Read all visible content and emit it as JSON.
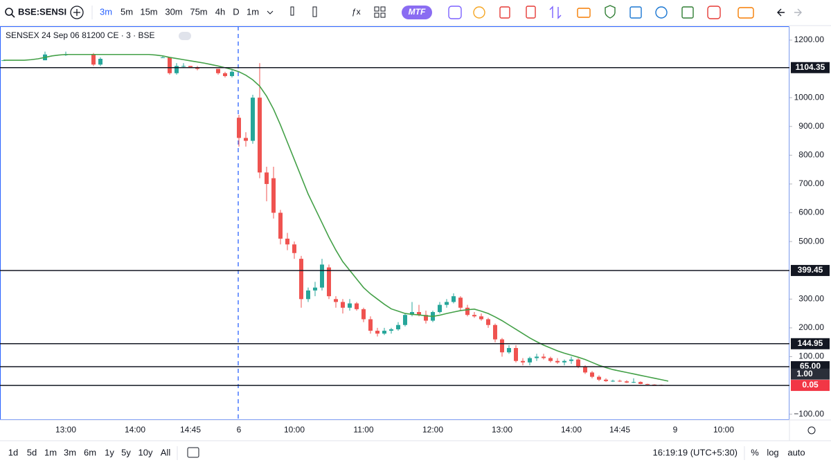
{
  "toolbar": {
    "symbol": "BSE:SENSI",
    "intervals": [
      "3m",
      "5m",
      "15m",
      "30m",
      "75m",
      "4h",
      "D",
      "1m"
    ],
    "mtf": "MTF"
  },
  "chart_data": {
    "type": "candlestick",
    "title": "SENSEX 24 Sep 06 81200 CE · 3 · BSE",
    "categories": [
      null,
      null,
      null,
      null,
      null,
      null,
      null,
      null,
      null,
      "13:00",
      null,
      null,
      null,
      null,
      null,
      null,
      null,
      null,
      null,
      "14:00",
      null,
      null,
      null,
      null,
      null,
      null,
      null,
      "14:45",
      null,
      null,
      null,
      null,
      null,
      null,
      "6",
      null,
      null,
      null,
      null,
      null,
      null,
      null,
      "10:00",
      null,
      null,
      null,
      null,
      null,
      null,
      null,
      null,
      null,
      "11:00",
      null,
      null,
      null,
      null,
      null,
      null,
      null,
      null,
      null,
      "12:00",
      null,
      null,
      null,
      null,
      null,
      null,
      null,
      null,
      null,
      "13:00",
      null,
      null,
      null,
      null,
      null,
      null,
      null,
      null,
      null,
      "14:00",
      null,
      null,
      null,
      null,
      null,
      null,
      "14:45",
      null,
      null,
      null,
      null,
      null,
      null,
      null,
      "9",
      null,
      null,
      null,
      null,
      null,
      null,
      "10:00"
    ],
    "open": [
      1130,
      null,
      null,
      null,
      null,
      null,
      1130,
      null,
      null,
      1150,
      null,
      null,
      null,
      1150,
      1115,
      null,
      null,
      null,
      null,
      null,
      null,
      null,
      null,
      1140,
      1140,
      1085,
      1110,
      1110,
      1105,
      null,
      null,
      1100,
      1085,
      1075,
      930,
      860,
      850,
      1000,
      740,
      720,
      600,
      510,
      490,
      440,
      300,
      330,
      340,
      410,
      300,
      290,
      270,
      285,
      265,
      230,
      190,
      180,
      190,
      195,
      210,
      245,
      255,
      245,
      225,
      255,
      280,
      290,
      305,
      270,
      245,
      240,
      230,
      210,
      160,
      115,
      130,
      85,
      80,
      95,
      100,
      95,
      85,
      80,
      85,
      90,
      65,
      45,
      30,
      20,
      15,
      16,
      14,
      10,
      12,
      5,
      3,
      2,
      1,
      null,
      null,
      null,
      null,
      null,
      null,
      null,
      null
    ],
    "high": [
      1130,
      null,
      null,
      null,
      null,
      null,
      1160,
      null,
      null,
      1160,
      null,
      null,
      null,
      1155,
      1140,
      null,
      null,
      null,
      null,
      null,
      null,
      null,
      null,
      1145,
      1140,
      1120,
      1120,
      1110,
      1110,
      null,
      null,
      1100,
      1090,
      1100,
      940,
      880,
      1010,
      1120,
      760,
      760,
      610,
      530,
      500,
      450,
      340,
      360,
      440,
      420,
      310,
      300,
      300,
      290,
      270,
      240,
      200,
      200,
      200,
      220,
      250,
      290,
      280,
      260,
      260,
      290,
      300,
      320,
      310,
      280,
      255,
      250,
      235,
      215,
      165,
      140,
      140,
      95,
      100,
      110,
      110,
      100,
      95,
      90,
      100,
      95,
      70,
      50,
      35,
      25,
      20,
      20,
      18,
      25,
      14,
      6,
      4,
      3,
      1.2,
      null,
      null,
      null,
      null,
      null,
      null,
      null,
      null
    ],
    "low": [
      1130,
      null,
      null,
      null,
      null,
      null,
      1130,
      null,
      null,
      1145,
      null,
      null,
      null,
      1110,
      1110,
      null,
      null,
      null,
      null,
      null,
      null,
      null,
      null,
      1140,
      1080,
      1080,
      1105,
      1105,
      1095,
      null,
      null,
      1080,
      1070,
      1070,
      830,
      830,
      840,
      720,
      640,
      580,
      490,
      470,
      440,
      270,
      290,
      310,
      330,
      300,
      270,
      250,
      260,
      260,
      220,
      180,
      170,
      175,
      180,
      190,
      205,
      240,
      240,
      215,
      220,
      250,
      270,
      285,
      260,
      240,
      235,
      225,
      200,
      150,
      100,
      110,
      80,
      70,
      70,
      85,
      90,
      80,
      75,
      70,
      75,
      60,
      40,
      25,
      15,
      12,
      12,
      12,
      8,
      8,
      4,
      2,
      1,
      0.5,
      0.05,
      null,
      null,
      null,
      null,
      null,
      null,
      null,
      null
    ],
    "close": [
      1130,
      null,
      null,
      null,
      null,
      null,
      1150,
      null,
      null,
      1150,
      null,
      null,
      null,
      1115,
      1135,
      null,
      null,
      null,
      null,
      null,
      null,
      null,
      null,
      1140,
      1085,
      1110,
      1110,
      1105,
      1100,
      null,
      null,
      1085,
      1075,
      1090,
      860,
      850,
      1000,
      740,
      700,
      600,
      510,
      490,
      460,
      300,
      330,
      340,
      420,
      310,
      290,
      270,
      285,
      265,
      230,
      190,
      180,
      190,
      195,
      210,
      245,
      255,
      245,
      225,
      255,
      280,
      290,
      310,
      270,
      245,
      240,
      230,
      210,
      160,
      115,
      130,
      85,
      80,
      95,
      100,
      95,
      85,
      80,
      85,
      90,
      65,
      45,
      30,
      20,
      15,
      16,
      14,
      10,
      12,
      5,
      3,
      2,
      1,
      0.05,
      null,
      null,
      null,
      null,
      null,
      null,
      null,
      null
    ],
    "up_color": "#26a69a",
    "down_color": "#ef5350",
    "ma": {
      "color": "#43a047",
      "values": [
        1130,
        1130,
        1130,
        1130,
        1132,
        1135,
        1140,
        1145,
        1148,
        1150,
        1150,
        1150,
        1150,
        1150,
        1150,
        1150,
        1150,
        1150,
        1150,
        1150,
        1150,
        1150,
        1148,
        1145,
        1140,
        1136,
        1132,
        1128,
        1124,
        1120,
        1115,
        1110,
        1104,
        1098,
        1090,
        1078,
        1062,
        1040,
        1005,
        960,
        905,
        845,
        785,
        725,
        665,
        615,
        565,
        515,
        470,
        430,
        400,
        370,
        340,
        318,
        300,
        282,
        266,
        258,
        250,
        247,
        245,
        242,
        240,
        244,
        250,
        255,
        260,
        263,
        265,
        258,
        250,
        238,
        225,
        210,
        195,
        180,
        165,
        152,
        140,
        130,
        120,
        112,
        105,
        98,
        90,
        80,
        70,
        62,
        55,
        50,
        45,
        40,
        35,
        30,
        25,
        20,
        15,
        null,
        null,
        null,
        null,
        null,
        null,
        null,
        null
      ]
    },
    "ylim": [
      -120,
      1248
    ],
    "yticks": [
      {
        "value": 1200,
        "label": "1200.00"
      },
      {
        "value": 1000,
        "label": "1000.00"
      },
      {
        "value": 900,
        "label": "900.00"
      },
      {
        "value": 800,
        "label": "800.00"
      },
      {
        "value": 700,
        "label": "700.00"
      },
      {
        "value": 600,
        "label": "600.00"
      },
      {
        "value": 500,
        "label": "500.00"
      },
      {
        "value": 300,
        "label": "300.00"
      },
      {
        "value": 200,
        "label": "200.00"
      },
      {
        "value": 100,
        "label": "100.00"
      },
      {
        "value": -100,
        "label": "−100.00"
      }
    ],
    "hlines": [
      {
        "value": 1104.35,
        "label": "1104.35"
      },
      {
        "value": 399.45,
        "label": "399.45"
      },
      {
        "value": 144.95,
        "label": "144.95"
      },
      {
        "value": 65,
        "label": "65.00"
      },
      {
        "value": 0.05,
        "label": "0.05"
      }
    ],
    "price_labels": [
      {
        "value": 1,
        "label": "1.00"
      }
    ]
  },
  "bottom_bar": {
    "ranges": [
      "1d",
      "5d",
      "1m",
      "3m",
      "6m",
      "1y",
      "5y",
      "10y",
      "All"
    ],
    "clock": "16:19:19 (UTC+5:30)",
    "options": [
      "%",
      "log",
      "auto"
    ]
  }
}
